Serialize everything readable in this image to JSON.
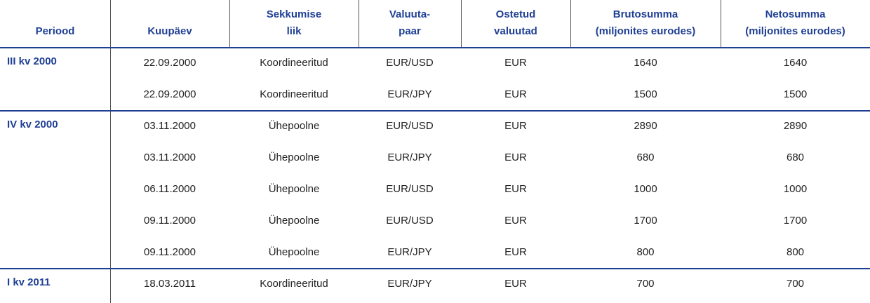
{
  "table": {
    "headers": [
      [
        "Periood"
      ],
      [
        "Kuupäev"
      ],
      [
        "Sekkumise",
        "liik"
      ],
      [
        "Valuuta-",
        "paar"
      ],
      [
        "Ostetud",
        "valuutad"
      ],
      [
        "Brutosumma",
        "(miljonites eurodes)"
      ],
      [
        "Netosumma",
        "(miljonites eurodes)"
      ]
    ],
    "groups": [
      {
        "period": "III kv 2000",
        "rows": [
          [
            "22.09.2000",
            "Koordineeritud",
            "EUR/USD",
            "EUR",
            1640,
            1640
          ],
          [
            "22.09.2000",
            "Koordineeritud",
            "EUR/JPY",
            "EUR",
            1500,
            1500
          ]
        ]
      },
      {
        "period": "IV kv 2000",
        "rows": [
          [
            "03.11.2000",
            "Ühepoolne",
            "EUR/USD",
            "EUR",
            2890,
            2890
          ],
          [
            "03.11.2000",
            "Ühepoolne",
            "EUR/JPY",
            "EUR",
            680,
            680
          ],
          [
            "06.11.2000",
            "Ühepoolne",
            "EUR/USD",
            "EUR",
            1000,
            1000
          ],
          [
            "09.11.2000",
            "Ühepoolne",
            "EUR/USD",
            "EUR",
            1700,
            1700
          ],
          [
            "09.11.2000",
            "Ühepoolne",
            "EUR/JPY",
            "EUR",
            800,
            800
          ]
        ]
      },
      {
        "period": "I kv 2011",
        "rows": [
          [
            "18.03.2011",
            "Koordineeritud",
            "EUR/JPY",
            "EUR",
            700,
            700
          ]
        ]
      }
    ]
  }
}
